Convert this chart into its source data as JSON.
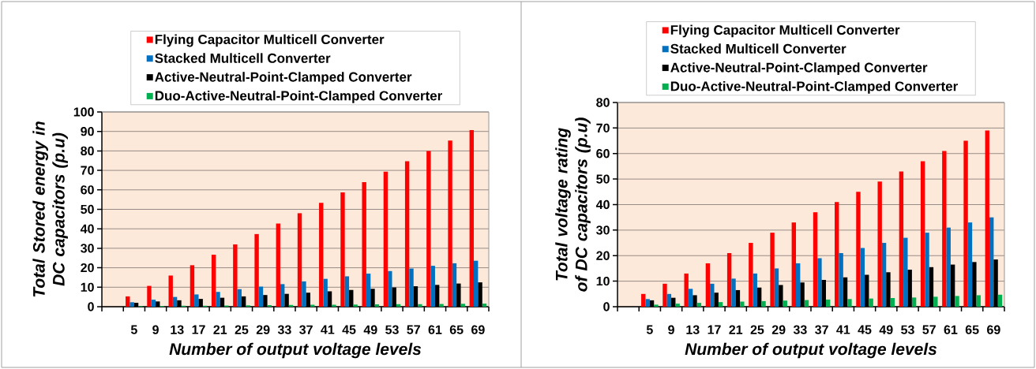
{
  "chart_data": [
    {
      "type": "bar",
      "xlabel": "Number of output voltage levels",
      "ylabel": "Total Stored energy in DC capacitors (p.u)",
      "categories": [
        null,
        "5",
        "9",
        "13",
        "17",
        "21",
        "25",
        "29",
        "33",
        "37",
        "41",
        "45",
        "49",
        "53",
        "57",
        "61",
        "65",
        "69"
      ],
      "series": [
        {
          "name": "Flying Capacitor Multicell Converter",
          "color": "#ff0000",
          "values": [
            null,
            5.3,
            10.7,
            16,
            21.3,
            26.7,
            32,
            37.3,
            42.7,
            48,
            53.3,
            58.7,
            64,
            69.3,
            74.7,
            80,
            85.3,
            90.7
          ]
        },
        {
          "name": "Stacked Multicell Converter",
          "color": "#0070c0",
          "values": [
            null,
            2.3,
            3.6,
            5,
            6.3,
            7.6,
            9,
            10.3,
            11.6,
            13,
            14.3,
            15.6,
            17,
            18.3,
            19.6,
            21,
            22.3,
            23.6
          ]
        },
        {
          "name": "Active-Neutral-Point-Clamped Converter",
          "color": "#000000",
          "values": [
            null,
            2.0,
            2.7,
            3.3,
            4.0,
            4.6,
            5.3,
            6.0,
            6.6,
            7.2,
            7.9,
            8.6,
            9.2,
            9.9,
            10.5,
            11.2,
            11.9,
            12.5
          ]
        },
        {
          "name": "Duo-Active-Neutral-Point-Clamped Converter",
          "color": "#00b050",
          "values": [
            null,
            0.3,
            0.4,
            0.5,
            0.5,
            0.6,
            0.7,
            0.8,
            0.9,
            1.0,
            1.0,
            1.1,
            1.2,
            1.3,
            1.3,
            1.4,
            1.5,
            1.6
          ]
        }
      ],
      "ylim": [
        0,
        100
      ],
      "yticks": [
        0,
        10,
        20,
        30,
        40,
        50,
        60,
        70,
        80,
        90,
        100
      ],
      "grid": "y",
      "legend": "top"
    },
    {
      "type": "bar",
      "xlabel": "Number of output voltage levels",
      "ylabel": "Total voltage rating of DC capacitors (p.u)",
      "categories": [
        null,
        "5",
        "9",
        "13",
        "17",
        "21",
        "25",
        "29",
        "33",
        "37",
        "41",
        "45",
        "49",
        "53",
        "57",
        "61",
        "65",
        "69"
      ],
      "series": [
        {
          "name": "Flying Capacitor Multicell Converter",
          "color": "#ff0000",
          "values": [
            null,
            5,
            9,
            13,
            17,
            21,
            25,
            29,
            33,
            37,
            41,
            45,
            49,
            53,
            57,
            61,
            65,
            69
          ]
        },
        {
          "name": "Stacked Multicell Converter",
          "color": "#0070c0",
          "values": [
            null,
            3,
            5,
            7,
            9,
            11,
            13,
            15,
            17,
            19,
            21,
            23,
            25,
            27,
            29,
            31,
            33,
            35
          ]
        },
        {
          "name": "Active-Neutral-Point-Clamped Converter",
          "color": "#000000",
          "values": [
            null,
            2.5,
            3.5,
            4.5,
            5.5,
            6.5,
            7.5,
            8.5,
            9.5,
            10.5,
            11.5,
            12.5,
            13.5,
            14.5,
            15.5,
            16.5,
            17.5,
            18.5
          ]
        },
        {
          "name": "Duo-Active-Neutral-Point-Clamped Converter",
          "color": "#00b050",
          "values": [
            null,
            0.8,
            1.2,
            1.5,
            1.8,
            2.0,
            2.2,
            2.4,
            2.6,
            2.8,
            3.0,
            3.2,
            3.4,
            3.6,
            3.9,
            4.2,
            4.5,
            4.7
          ]
        }
      ],
      "ylim": [
        0,
        80
      ],
      "yticks": [
        0,
        10,
        20,
        30,
        40,
        50,
        60,
        70,
        80
      ],
      "grid": "y",
      "legend": "top"
    }
  ]
}
